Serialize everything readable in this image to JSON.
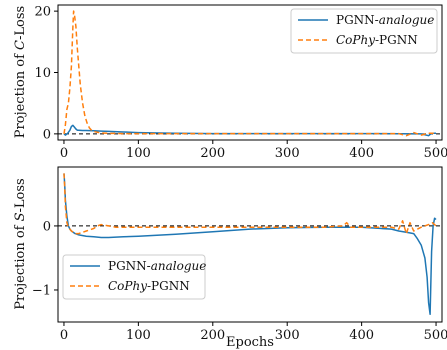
{
  "chart_data": [
    {
      "type": "line",
      "xlabel": "",
      "ylabel": "Projection of C-Loss",
      "ylabel_parts": [
        "Projection of ",
        "C",
        "-Loss"
      ],
      "xlim": [
        -8,
        508
      ],
      "ylim": [
        -1,
        21
      ],
      "xticks": [
        0,
        100,
        200,
        300,
        400,
        500
      ],
      "yticks": [
        0,
        10,
        20
      ],
      "zero_line": "dashed",
      "grid": false,
      "legend_position": "top-right",
      "series": [
        {
          "name": "PGNN-analogue",
          "name_parts": [
            "PGNN-",
            "analogue"
          ],
          "color": "#1f77b4",
          "linestyle": "solid",
          "x": [
            0,
            2,
            5,
            8,
            10,
            12,
            14,
            16,
            18,
            20,
            25,
            30,
            40,
            50,
            60,
            80,
            100,
            150,
            200,
            250,
            300,
            350,
            400,
            450,
            480,
            490,
            494,
            500
          ],
          "y": [
            0.0,
            -0.2,
            0.1,
            0.6,
            1.2,
            1.4,
            1.1,
            0.8,
            0.6,
            0.6,
            0.55,
            0.55,
            0.5,
            0.45,
            0.4,
            0.3,
            0.2,
            0.1,
            0.05,
            0.05,
            0.05,
            0.05,
            0.05,
            0.02,
            0.0,
            -0.3,
            0.1,
            0.1
          ]
        },
        {
          "name": "CoPhy-PGNN",
          "name_parts": [
            "CoPhy",
            "-PGNN"
          ],
          "color": "#ff7f0e",
          "linestyle": "dashed",
          "x": [
            0,
            2,
            4,
            6,
            8,
            10,
            12,
            13,
            14,
            16,
            18,
            20,
            22,
            25,
            28,
            31,
            34,
            37,
            40,
            45,
            50,
            60,
            80,
            100,
            150,
            200,
            250,
            300,
            350,
            400,
            450,
            460,
            470,
            480,
            490,
            500
          ],
          "y": [
            0.0,
            1.5,
            4.0,
            5.0,
            7.5,
            11.0,
            17.5,
            20.0,
            19.5,
            17.5,
            14.0,
            11.0,
            8.0,
            5.0,
            3.0,
            1.8,
            1.0,
            0.6,
            0.4,
            0.25,
            0.15,
            0.1,
            0.05,
            0.05,
            0.05,
            0.05,
            0.05,
            0.05,
            0.05,
            0.05,
            0.05,
            -0.3,
            0.2,
            -0.2,
            0.1,
            0.1
          ]
        }
      ]
    },
    {
      "type": "line",
      "xlabel": "Epochs",
      "ylabel": "Projection of S-Loss",
      "ylabel_parts": [
        "Projection of ",
        "S",
        "-Loss"
      ],
      "xlim": [
        -8,
        508
      ],
      "ylim": [
        -1.5,
        0.92
      ],
      "xticks": [
        0,
        100,
        200,
        300,
        400,
        500
      ],
      "yticks": [
        -1,
        0
      ],
      "zero_line": "dashed",
      "grid": false,
      "legend_position": "bottom-left",
      "series": [
        {
          "name": "PGNN-analogue",
          "name_parts": [
            "PGNN-",
            "analogue"
          ],
          "color": "#1f77b4",
          "linestyle": "solid",
          "x": [
            0,
            1,
            2,
            4,
            6,
            8,
            10,
            15,
            20,
            30,
            40,
            50,
            60,
            80,
            100,
            150,
            200,
            250,
            300,
            350,
            380,
            400,
            440,
            450,
            460,
            470,
            475,
            480,
            485,
            488,
            490,
            492,
            494,
            496,
            498,
            500
          ],
          "y": [
            0.82,
            0.65,
            0.4,
            0.15,
            0.0,
            -0.05,
            -0.08,
            -0.12,
            -0.14,
            -0.16,
            -0.17,
            -0.18,
            -0.18,
            -0.17,
            -0.16,
            -0.13,
            -0.09,
            -0.05,
            -0.03,
            -0.02,
            -0.02,
            -0.02,
            -0.05,
            -0.08,
            -0.1,
            -0.12,
            -0.2,
            -0.3,
            -0.5,
            -0.8,
            -1.2,
            -1.38,
            -0.4,
            0.0,
            0.12,
            0.1
          ]
        },
        {
          "name": "CoPhy-PGNN",
          "name_parts": [
            "CoPhy",
            "-PGNN"
          ],
          "color": "#ff7f0e",
          "linestyle": "dashed",
          "x": [
            0,
            1,
            2,
            4,
            6,
            8,
            10,
            15,
            20,
            30,
            40,
            45,
            50,
            55,
            60,
            70,
            80,
            100,
            150,
            200,
            250,
            300,
            350,
            375,
            380,
            385,
            400,
            440,
            450,
            455,
            460,
            465,
            470,
            480,
            490,
            495,
            500
          ],
          "y": [
            0.82,
            0.6,
            0.3,
            0.05,
            -0.02,
            -0.05,
            -0.08,
            -0.12,
            -0.12,
            -0.08,
            -0.04,
            0.0,
            0.02,
            0.01,
            0.0,
            -0.02,
            -0.02,
            -0.02,
            -0.02,
            -0.02,
            -0.02,
            -0.02,
            -0.02,
            0.0,
            0.05,
            -0.02,
            -0.02,
            -0.02,
            -0.05,
            0.08,
            -0.12,
            0.05,
            -0.08,
            -0.02,
            0.02,
            0.05,
            0.0
          ]
        }
      ]
    }
  ]
}
